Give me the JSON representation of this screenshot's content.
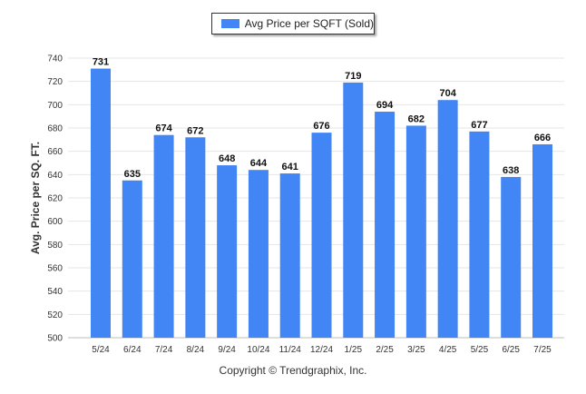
{
  "legend": {
    "label": "Avg Price per SQFT (Sold)"
  },
  "footer": {
    "copyright": "Copyright © Trendgraphix, Inc."
  },
  "colors": {
    "bar": "#4285f4",
    "grid": "#e6e6e6",
    "axis_text": "#333333",
    "value_text": "#111111"
  },
  "chart_data": {
    "type": "bar",
    "title": "",
    "xlabel": "",
    "ylabel": "Avg. Price per SQ. FT.",
    "categories": [
      "5/24",
      "6/24",
      "7/24",
      "8/24",
      "9/24",
      "10/24",
      "11/24",
      "12/24",
      "1/25",
      "2/25",
      "3/25",
      "4/25",
      "5/25",
      "6/25",
      "7/25"
    ],
    "series": [
      {
        "name": "Avg Price per SQFT (Sold)",
        "values": [
          731,
          635,
          674,
          672,
          648,
          644,
          641,
          676,
          719,
          694,
          682,
          704,
          677,
          638,
          666
        ]
      }
    ],
    "ylim": [
      500,
      740
    ],
    "yticks": [
      500,
      520,
      540,
      560,
      580,
      600,
      620,
      640,
      660,
      680,
      700,
      720,
      740
    ],
    "grid": true,
    "legend_position": "top-center",
    "data_labels": true
  }
}
